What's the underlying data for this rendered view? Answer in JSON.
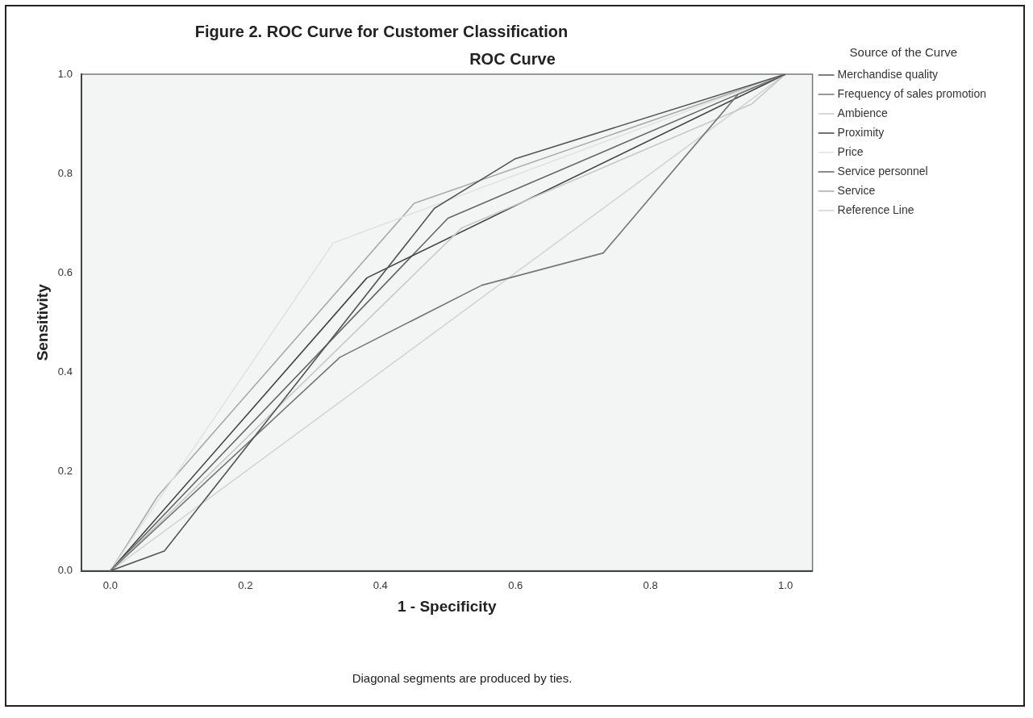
{
  "chart_data": {
    "type": "line",
    "title": "Figure 2. ROC Curve for Customer Classification",
    "subtitle": "ROC Curve",
    "xlabel": "1 - Specificity",
    "ylabel": "Sensitivity",
    "legend_title": "Source of the Curve",
    "legend": "right",
    "marker": "none",
    "grid": false,
    "xlim": [
      -0.043,
      1.04
    ],
    "xticks": [
      {
        "value": 0,
        "label": "0.0"
      },
      0.2,
      0.4,
      0.6,
      0.8,
      {
        "value": 1,
        "label": "1.0"
      }
    ],
    "ylim": [
      0,
      1
    ],
    "yticks": [
      {
        "value": 0,
        "label": "0.0"
      },
      0.2,
      0.4,
      0.6,
      0.8,
      {
        "value": 1,
        "label": "1.0"
      }
    ],
    "series": [
      {
        "name": "Merchandise quality",
        "color": "#555555",
        "x": [
          0,
          0.08,
          0.48,
          0.6,
          1
        ],
        "values": [
          0,
          0.04,
          0.73,
          0.83,
          1
        ]
      },
      {
        "name": "Frequency of sales promotion",
        "color": "#777777",
        "x": [
          0,
          0.34,
          0.55,
          0.73,
          0.93,
          1
        ],
        "values": [
          0,
          0.43,
          0.575,
          0.64,
          0.96,
          1
        ]
      },
      {
        "name": "Ambience",
        "color": "#c8c8c8",
        "x": [
          0,
          0.52,
          0.95,
          1
        ],
        "values": [
          0,
          0.69,
          0.94,
          1
        ]
      },
      {
        "name": "Proximity",
        "color": "#444444",
        "x": [
          0,
          0.38,
          1
        ],
        "values": [
          0,
          0.59,
          1
        ]
      },
      {
        "name": "Price",
        "color": "#e2e2e2",
        "x": [
          0,
          0.33,
          1
        ],
        "values": [
          0,
          0.66,
          1
        ]
      },
      {
        "name": "Service personnel",
        "color": "#666666",
        "x": [
          0,
          0.5,
          0.93,
          1
        ],
        "values": [
          0,
          0.71,
          0.96,
          1
        ]
      },
      {
        "name": "Service",
        "color": "#aaaaaa",
        "x": [
          0,
          0.07,
          0.45,
          1
        ],
        "values": [
          0,
          0.15,
          0.74,
          1
        ]
      },
      {
        "name": "Reference Line",
        "color": "#d4d4d4",
        "x": [
          0,
          1
        ],
        "values": [
          0,
          1
        ]
      }
    ],
    "annotations": [
      "Diagonal segments are produced by ties."
    ]
  }
}
